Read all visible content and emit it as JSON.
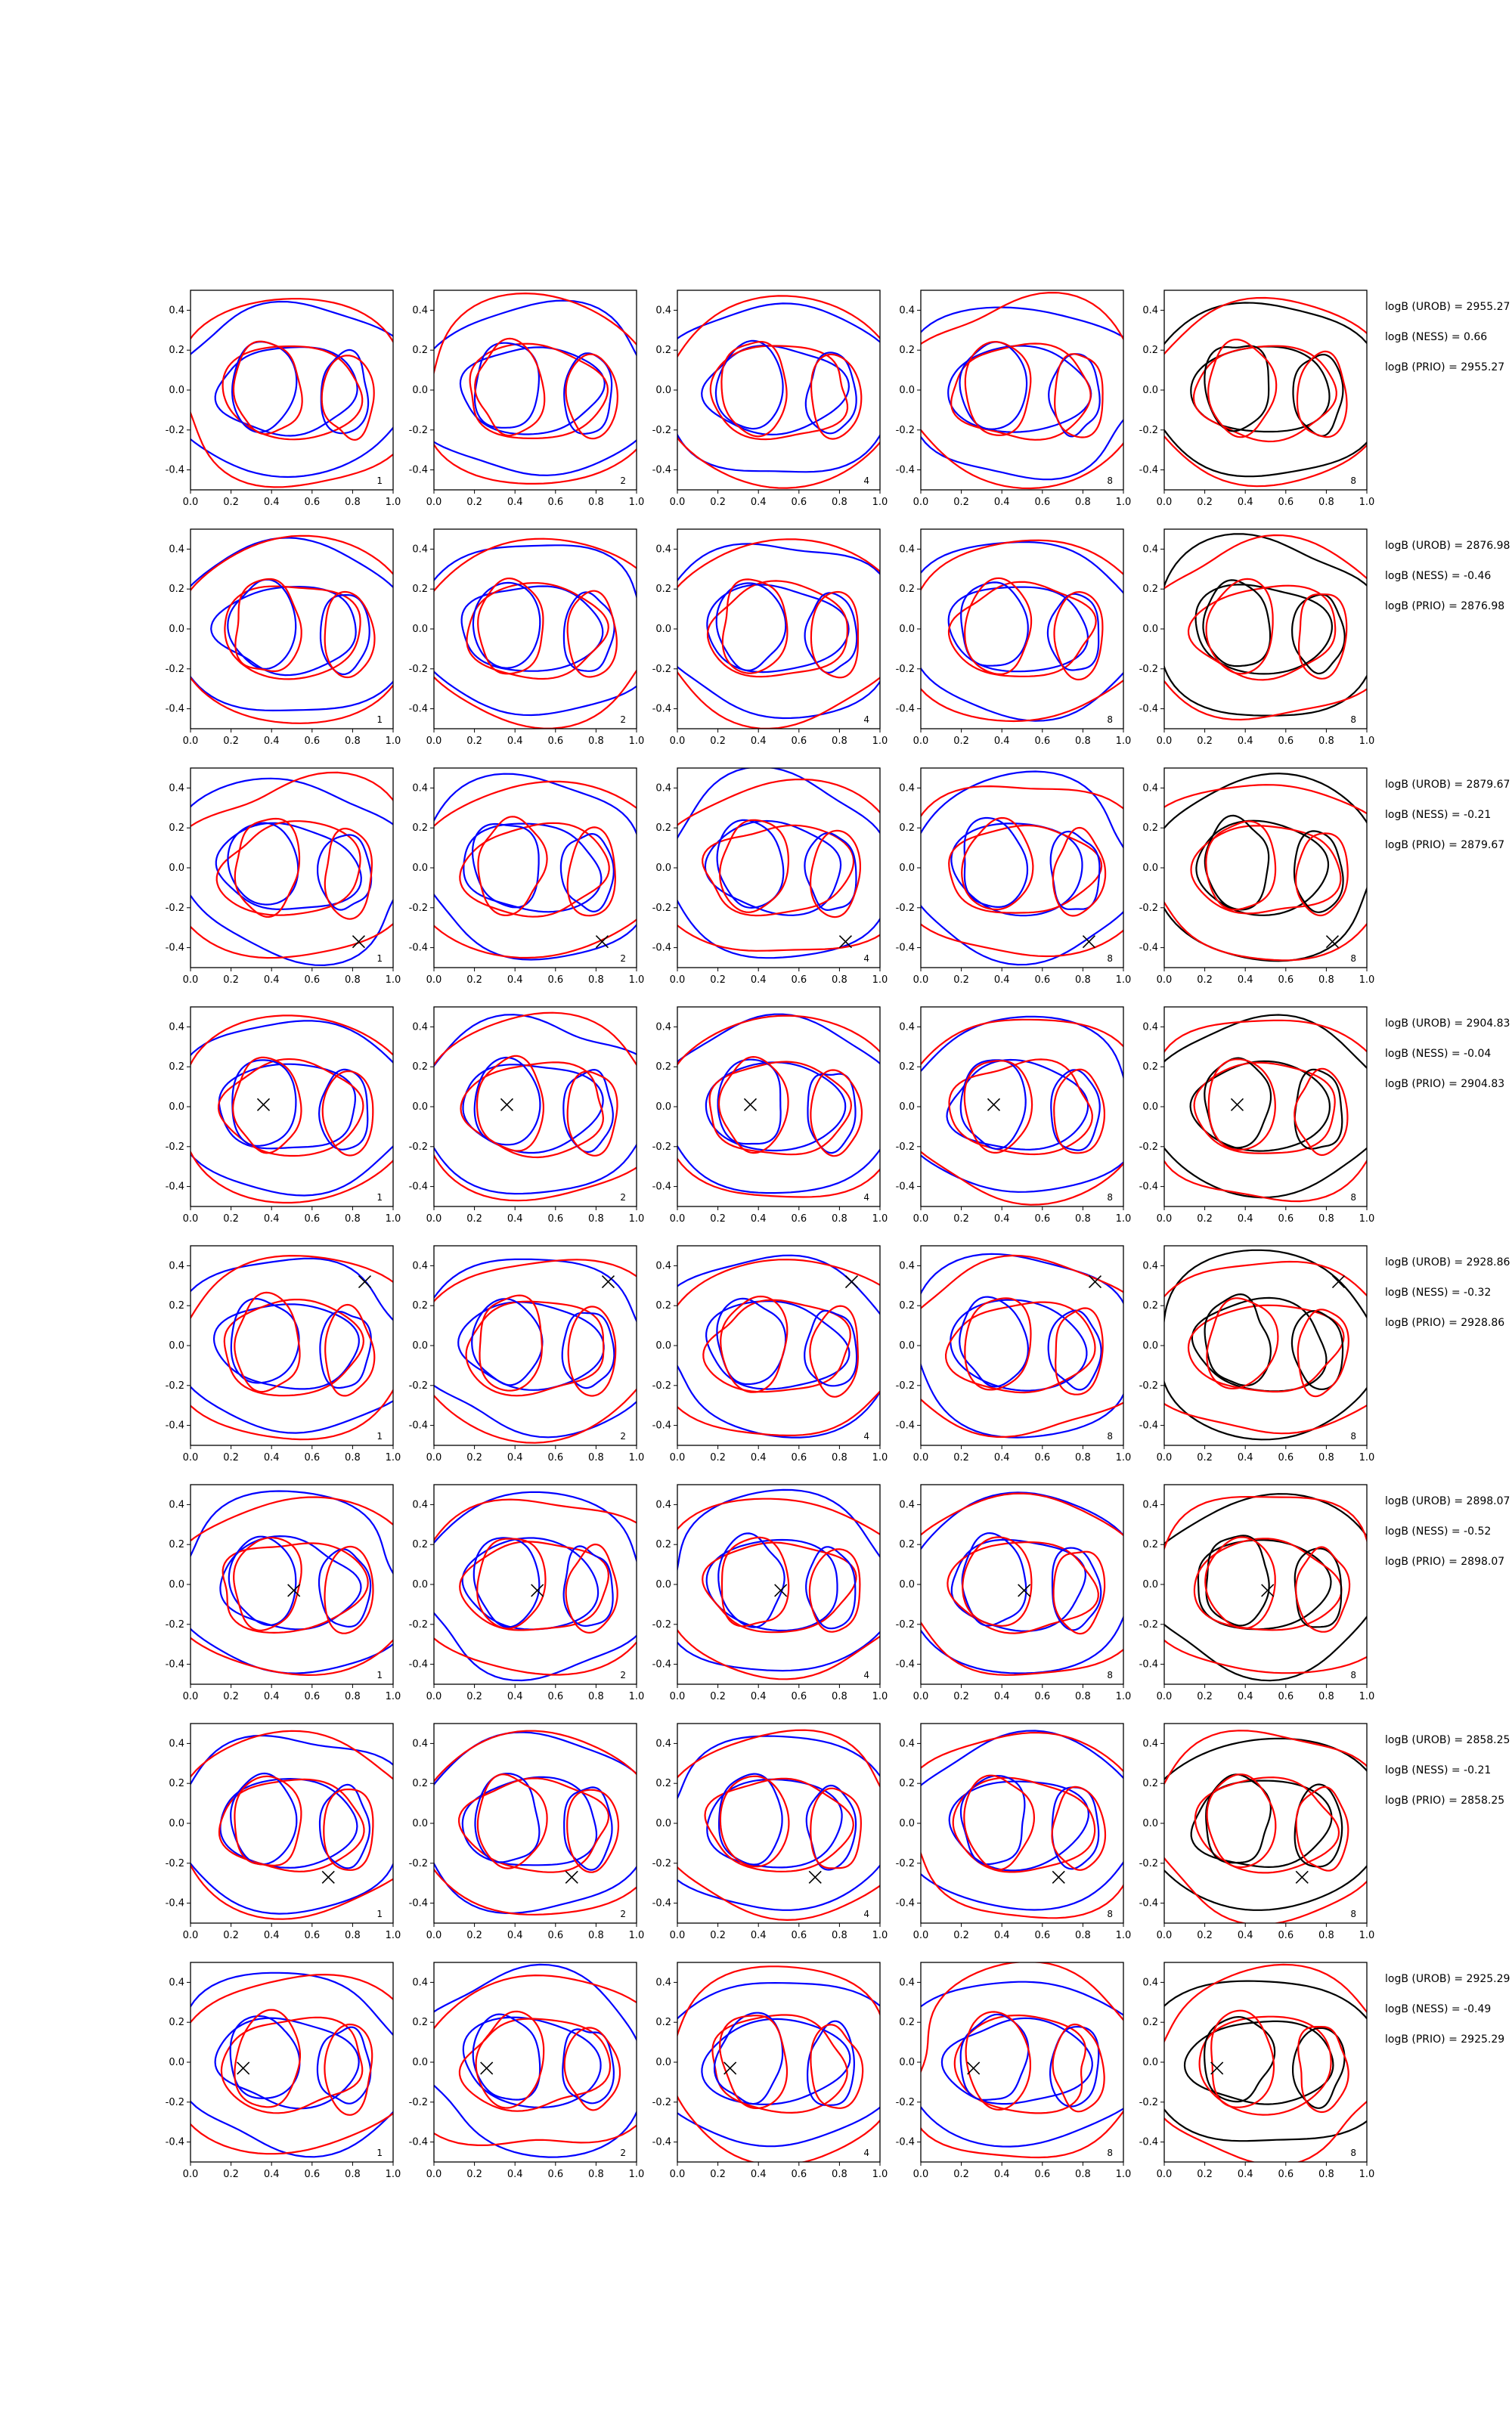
{
  "chart_data": {
    "type": "contour-grid",
    "rows": 8,
    "cols": 5,
    "xlim": [
      0.0,
      1.0
    ],
    "ylim": [
      -0.5,
      0.5
    ],
    "xticks": [
      "0.0",
      "0.2",
      "0.4",
      "0.6",
      "0.8",
      "1.0"
    ],
    "yticks": [
      "0.4",
      "0.2",
      "0.0",
      "-0.2",
      "-0.4"
    ],
    "xtick_values": [
      0.0,
      0.2,
      0.4,
      0.6,
      0.8,
      1.0
    ],
    "ytick_values": [
      0.4,
      0.2,
      0.0,
      -0.2,
      -0.4
    ],
    "panel_labels": [
      "1",
      "2",
      "4",
      "8",
      "8"
    ],
    "colors": {
      "red": "#ff0000",
      "blue": "#0000ff",
      "black": "#000000"
    },
    "stat_names": [
      "logB (UROB)",
      "logB (NESS)",
      "logB (PRIO)"
    ],
    "rows_data": [
      {
        "marker": null,
        "stats": [
          "2955.27",
          "0.66",
          "2955.27"
        ]
      },
      {
        "marker": null,
        "stats": [
          "2876.98",
          "-0.46",
          "2876.98"
        ]
      },
      {
        "marker": [
          0.83,
          -0.37
        ],
        "stats": [
          "2879.67",
          "-0.21",
          "2879.67"
        ]
      },
      {
        "marker": [
          0.36,
          0.01
        ],
        "stats": [
          "2904.83",
          "-0.04",
          "2904.83"
        ]
      },
      {
        "marker": [
          0.86,
          0.32
        ],
        "stats": [
          "2928.86",
          "-0.32",
          "2928.86"
        ]
      },
      {
        "marker": [
          0.51,
          -0.03
        ],
        "stats": [
          "2898.07",
          "-0.52",
          "2898.07"
        ]
      },
      {
        "marker": [
          0.68,
          -0.27
        ],
        "stats": [
          "2858.25",
          "-0.21",
          "2858.25"
        ]
      },
      {
        "marker": [
          0.26,
          -0.03
        ],
        "stats": [
          "2925.29",
          "-0.49",
          "2925.29"
        ]
      }
    ]
  }
}
